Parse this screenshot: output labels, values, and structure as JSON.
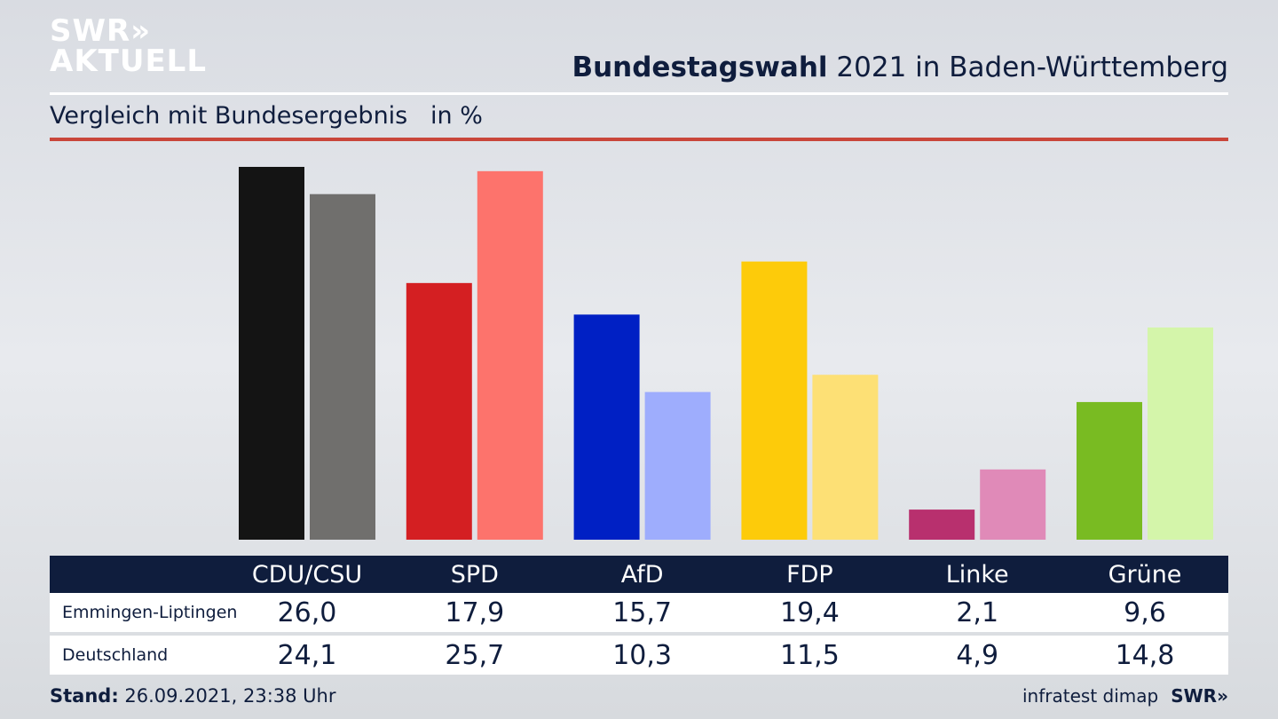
{
  "logo": {
    "line1": "SWR»",
    "line2": "AKTUELL"
  },
  "title": {
    "bold": "Bundestagswahl",
    "rest": " 2021 in Baden-Württemberg"
  },
  "subtitle": "Vergleich mit Bundesergebnis   in %",
  "footer": {
    "stand_label": "Stand:",
    "stand_value": " 26.09.2021, 23:38 Uhr",
    "source": "infratest dimap",
    "brand": "SWR»"
  },
  "table": {
    "rows": [
      {
        "label": "Emmingen-Liptingen",
        "values": [
          "26,0",
          "17,9",
          "15,7",
          "19,4",
          "2,1",
          "9,6"
        ]
      },
      {
        "label": "Deutschland",
        "values": [
          "24,1",
          "25,7",
          "10,3",
          "11,5",
          "4,9",
          "14,8"
        ]
      }
    ]
  },
  "chart_data": {
    "type": "bar",
    "categories": [
      "CDU/CSU",
      "SPD",
      "AfD",
      "FDP",
      "Linke",
      "Grüne"
    ],
    "series": [
      {
        "name": "Emmingen-Liptingen",
        "values": [
          26.0,
          17.9,
          15.7,
          19.4,
          2.1,
          9.6
        ]
      },
      {
        "name": "Deutschland",
        "values": [
          24.1,
          25.7,
          10.3,
          11.5,
          4.9,
          14.8
        ]
      }
    ],
    "colors_primary": [
      "#141414",
      "#d41f22",
      "#0020c4",
      "#fdcb0a",
      "#b8306e",
      "#79bb22"
    ],
    "colors_secondary": [
      "#706f6d",
      "#fd736c",
      "#9eadfd",
      "#fde075",
      "#e08ab8",
      "#d4f5aa"
    ],
    "ylim": [
      0,
      26
    ],
    "grid": false
  }
}
